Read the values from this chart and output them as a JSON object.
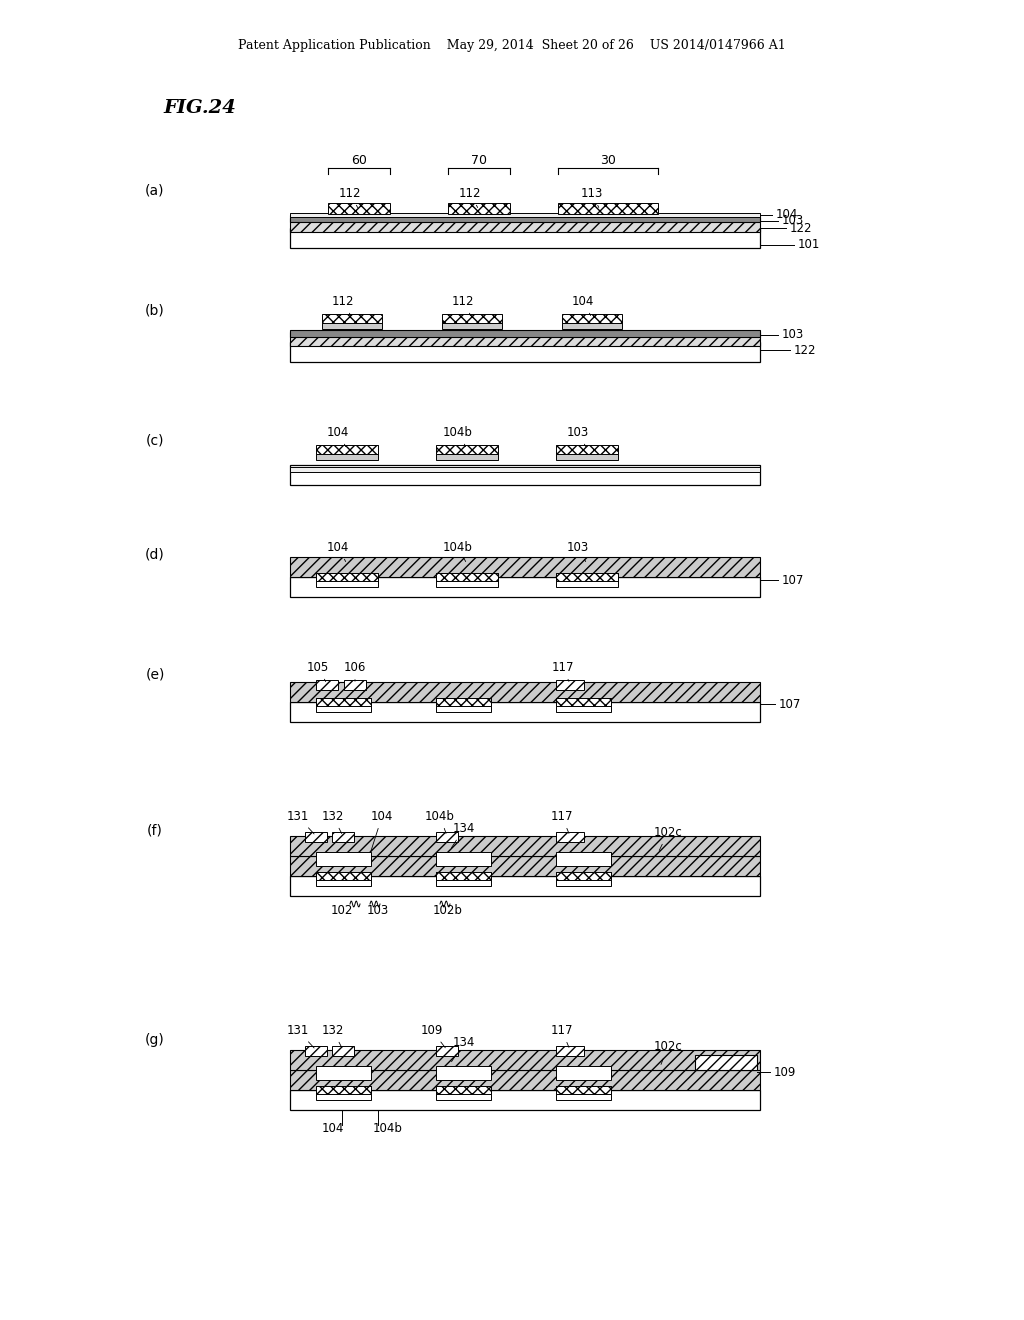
{
  "bg_color": "#ffffff",
  "header_text": "Patent Application Publication    May 29, 2014  Sheet 20 of 26    US 2014/0147966 A1",
  "fig_title": "FIG.24",
  "panels": [
    "(a)",
    "(b)",
    "(c)",
    "(d)",
    "(e)",
    "(f)",
    "(g)"
  ]
}
